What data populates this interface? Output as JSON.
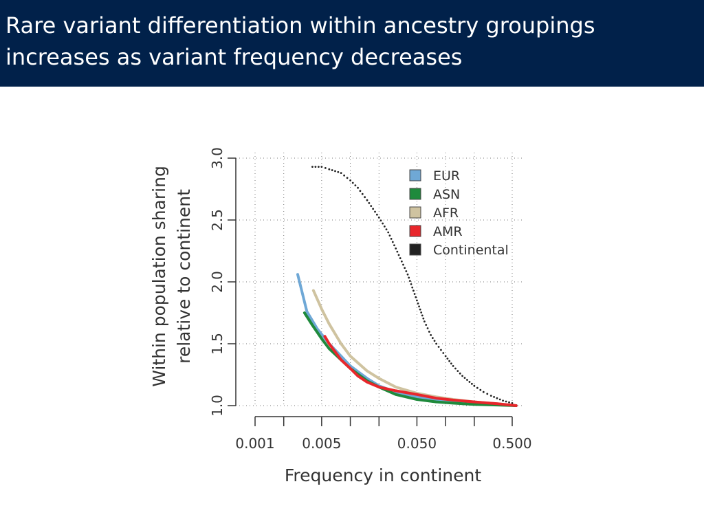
{
  "slide": {
    "title_line1": "Rare variant differentiation within ancestry groupings",
    "title_line2": "increases as variant frequency decreases",
    "header_color": "#01214a"
  },
  "chart_data": {
    "type": "line",
    "xlabel": "Frequency in continent",
    "ylabel_line1": "Within population sharing",
    "ylabel_line2": "relative to continent",
    "x_scale": "log",
    "xlim": [
      0.001,
      0.6
    ],
    "ylim": [
      1.0,
      3.0
    ],
    "x_ticks": [
      0.001,
      0.005,
      0.05,
      0.5
    ],
    "x_tick_labels": [
      "0.001",
      "0.005",
      "0.050",
      "0.500"
    ],
    "x_minor_ticks": [
      0.002,
      0.01,
      0.02,
      0.1,
      0.2
    ],
    "y_ticks": [
      1.0,
      1.5,
      2.0,
      2.5,
      3.0
    ],
    "y_tick_labels": [
      "1.0",
      "1.5",
      "2.0",
      "2.5",
      "3.0"
    ],
    "grid": "dotted",
    "legend_position": "top-right",
    "series": [
      {
        "name": "EUR",
        "color": "#6fa8d6",
        "style": "solid",
        "x": [
          0.0028,
          0.0035,
          0.0045,
          0.006,
          0.008,
          0.01,
          0.015,
          0.02,
          0.03,
          0.05,
          0.08,
          0.12,
          0.2,
          0.35,
          0.55
        ],
        "y": [
          2.06,
          1.76,
          1.62,
          1.5,
          1.4,
          1.32,
          1.22,
          1.16,
          1.11,
          1.07,
          1.05,
          1.03,
          1.02,
          1.01,
          1.0
        ]
      },
      {
        "name": "ASN",
        "color": "#1f8a3c",
        "style": "solid",
        "x": [
          0.0033,
          0.004,
          0.005,
          0.006,
          0.008,
          0.01,
          0.015,
          0.02,
          0.03,
          0.05,
          0.08,
          0.12,
          0.2,
          0.35,
          0.55
        ],
        "y": [
          1.75,
          1.65,
          1.54,
          1.46,
          1.37,
          1.3,
          1.2,
          1.15,
          1.09,
          1.05,
          1.03,
          1.02,
          1.01,
          1.005,
          1.0
        ]
      },
      {
        "name": "AFR",
        "color": "#cfc3a0",
        "style": "solid",
        "x": [
          0.0041,
          0.005,
          0.006,
          0.008,
          0.01,
          0.015,
          0.02,
          0.03,
          0.05,
          0.08,
          0.12,
          0.2,
          0.35,
          0.55
        ],
        "y": [
          1.93,
          1.78,
          1.66,
          1.5,
          1.4,
          1.28,
          1.22,
          1.15,
          1.1,
          1.07,
          1.05,
          1.03,
          1.015,
          1.0
        ]
      },
      {
        "name": "AMR",
        "color": "#e8262b",
        "style": "solid",
        "x": [
          0.0054,
          0.006,
          0.007,
          0.008,
          0.01,
          0.012,
          0.015,
          0.02,
          0.03,
          0.05,
          0.08,
          0.12,
          0.2,
          0.35,
          0.55
        ],
        "y": [
          1.56,
          1.5,
          1.43,
          1.37,
          1.3,
          1.24,
          1.19,
          1.15,
          1.12,
          1.09,
          1.06,
          1.045,
          1.03,
          1.015,
          1.0
        ]
      },
      {
        "name": "Continental",
        "color": "#222222",
        "style": "dotted",
        "x": [
          0.004,
          0.005,
          0.006,
          0.008,
          0.01,
          0.012,
          0.015,
          0.02,
          0.025,
          0.03,
          0.04,
          0.05,
          0.06,
          0.07,
          0.08,
          0.1,
          0.12,
          0.15,
          0.2,
          0.25,
          0.3,
          0.4,
          0.5,
          0.55
        ],
        "y": [
          2.93,
          2.93,
          2.91,
          2.88,
          2.82,
          2.76,
          2.66,
          2.52,
          2.4,
          2.27,
          2.06,
          1.85,
          1.68,
          1.57,
          1.5,
          1.4,
          1.32,
          1.24,
          1.16,
          1.11,
          1.08,
          1.04,
          1.02,
          1.0
        ]
      }
    ]
  }
}
